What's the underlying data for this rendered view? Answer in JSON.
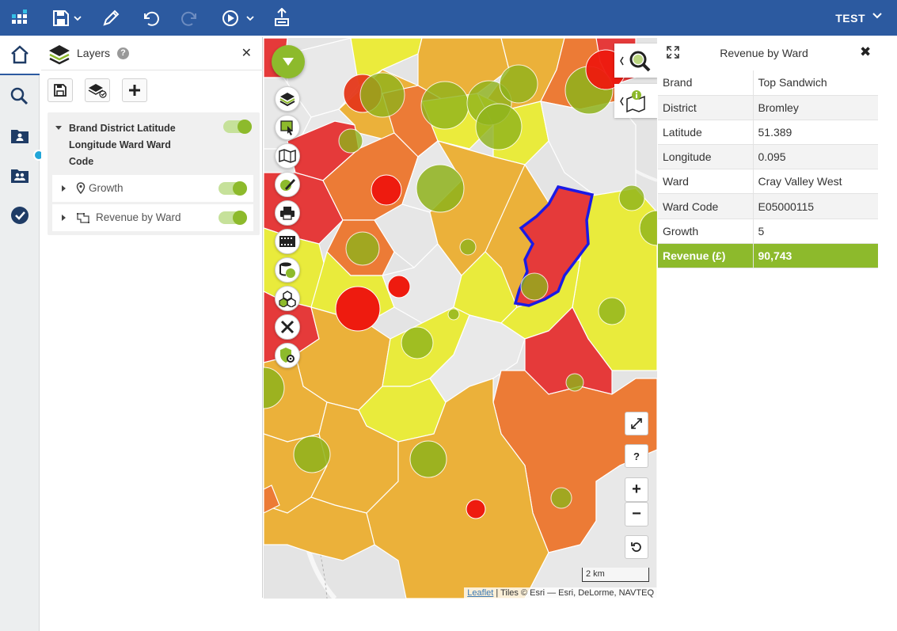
{
  "topbar": {
    "user_label": "TEST",
    "icons": [
      "app-grid-icon",
      "save-icon",
      "edit-icon",
      "undo-icon",
      "redo-icon",
      "play-icon",
      "share-icon"
    ]
  },
  "rail": {
    "items": [
      "home-icon",
      "search-icon",
      "user-folder-icon",
      "group-folder-icon",
      "dashboard-icon"
    ]
  },
  "layers": {
    "title": "Layers",
    "help_label": "?",
    "close_label": "✕",
    "group_title": "Brand District Latitude Longitude Ward Ward Code",
    "sublayers": [
      {
        "label": "Growth",
        "icon": "map-pin-icon",
        "enabled": true
      },
      {
        "label": "Revenue by Ward",
        "icon": "polygon-icon",
        "enabled": true
      }
    ]
  },
  "map": {
    "scale_label": "2 km",
    "attribution_link": "Leaflet",
    "attribution_text": " | Tiles © Esri — Esri, DeLorme, NAVTEQ",
    "zoom_in_label": "+",
    "zoom_out_label": "−",
    "help_label": "?",
    "colors": {
      "red": "#e53a3a",
      "orange": "#ec7b36",
      "amber": "#ebb13a",
      "yellow": "#ececa0",
      "bright_yellow": "#e9eb3c",
      "green_bubble": "#8fb31c",
      "selection": "#1a1ae6"
    }
  },
  "info": {
    "title": "Revenue by Ward",
    "close_label": "✖",
    "rows": [
      {
        "key": "Brand",
        "value": "Top Sandwich"
      },
      {
        "key": "District",
        "value": "Bromley"
      },
      {
        "key": "Latitude",
        "value": "51.389"
      },
      {
        "key": "Longitude",
        "value": "0.095"
      },
      {
        "key": "Ward",
        "value": "Cray Valley West"
      },
      {
        "key": "Ward Code",
        "value": "E05000115"
      },
      {
        "key": "Growth",
        "value": "5"
      },
      {
        "key": "Revenue (£)",
        "value": "90,743"
      }
    ]
  }
}
